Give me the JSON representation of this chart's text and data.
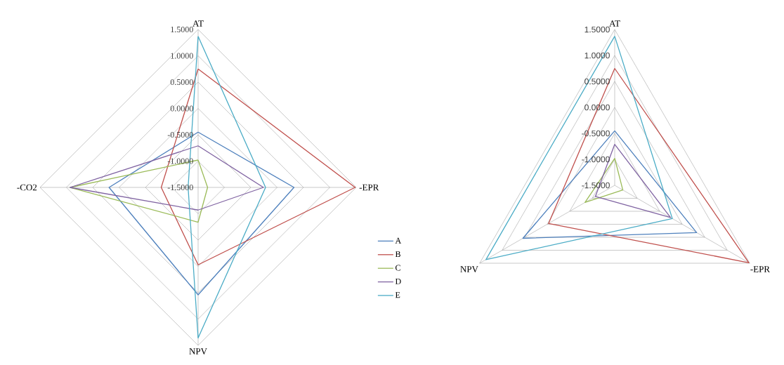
{
  "chart_data": [
    {
      "type": "radar",
      "categories": [
        "AT",
        "-EPR",
        "NPV",
        "-CO2"
      ],
      "ylim": [
        -1.5,
        1.5
      ],
      "yticks": [
        {
          "value": -1.5,
          "label": "-1.5000"
        },
        {
          "value": -1.0,
          "label": "-1.0000"
        },
        {
          "value": -0.5,
          "label": "-0.5000"
        },
        {
          "value": 0.0,
          "label": "0.0000"
        },
        {
          "value": 0.5,
          "label": "0.5000"
        },
        {
          "value": 1.0,
          "label": "1.0000"
        },
        {
          "value": 1.5,
          "label": "1.5000"
        }
      ],
      "grid": true,
      "legend": "right",
      "series": [
        {
          "name": "A",
          "color": "#4f81bd",
          "values": [
            -0.45,
            0.32,
            0.54,
            0.19
          ]
        },
        {
          "name": "B",
          "color": "#c0504d",
          "values": [
            0.75,
            1.48,
            -0.03,
            -0.8
          ]
        },
        {
          "name": "C",
          "color": "#9bbb59",
          "values": [
            -0.98,
            -1.32,
            -0.84,
            0.93
          ]
        },
        {
          "name": "D",
          "color": "#8064a2",
          "values": [
            -0.71,
            -0.26,
            -1.07,
            0.93
          ]
        },
        {
          "name": "E",
          "color": "#4bacc6",
          "values": [
            1.37,
            -0.22,
            1.36,
            -1.31
          ]
        }
      ]
    },
    {
      "type": "radar",
      "categories": [
        "AT",
        "-EPR",
        "NPV"
      ],
      "ylim": [
        -1.5,
        1.5
      ],
      "yticks": [
        {
          "value": -1.5,
          "label": "-1.5000"
        },
        {
          "value": -1.0,
          "label": "-1.0000"
        },
        {
          "value": -0.5,
          "label": "-0.5000"
        },
        {
          "value": 0.0,
          "label": "0.0000"
        },
        {
          "value": 0.5,
          "label": "0.5000"
        },
        {
          "value": 1.0,
          "label": "1.0000"
        },
        {
          "value": 1.5,
          "label": "1.5000"
        }
      ],
      "grid": true,
      "series": [
        {
          "color": "#4f81bd",
          "values": [
            -0.45,
            0.32,
            0.54
          ]
        },
        {
          "color": "#c0504d",
          "values": [
            0.75,
            1.48,
            -0.03
          ]
        },
        {
          "color": "#9bbb59",
          "values": [
            -0.98,
            -1.32,
            -0.84
          ]
        },
        {
          "color": "#8064a2",
          "values": [
            -0.71,
            -0.26,
            -1.07
          ]
        },
        {
          "color": "#4bacc6",
          "values": [
            1.37,
            -0.22,
            1.36
          ]
        }
      ]
    }
  ]
}
